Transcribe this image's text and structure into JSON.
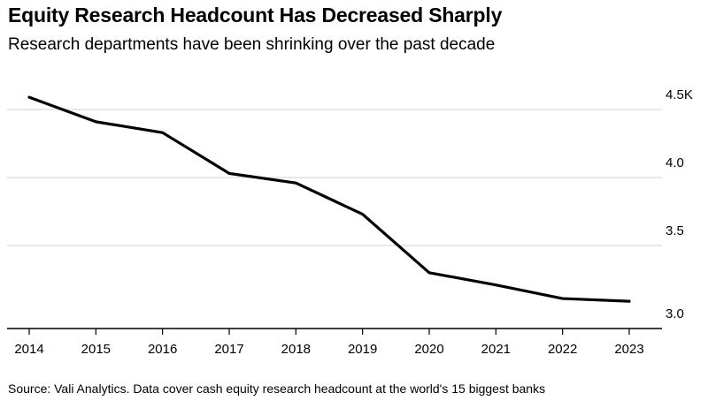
{
  "title": "Equity Research Headcount Has Decreased Sharply",
  "subtitle": "Research departments have been shrinking over the past decade",
  "source": "Source: Vali Analytics. Data cover cash equity research headcount at the world's 15 biggest banks",
  "colors": {
    "line": "#000000",
    "grid": "#d9d9d9",
    "axis": "#000000"
  },
  "chart_data": {
    "type": "line",
    "title": "Equity Research Headcount Has Decreased Sharply",
    "subtitle": "Research departments have been shrinking over the past decade",
    "x": [
      2014,
      2015,
      2016,
      2017,
      2018,
      2019,
      2020,
      2021,
      2022,
      2023
    ],
    "x_tick_labels": [
      "2014",
      "2015",
      "2016",
      "2017",
      "2018",
      "2019",
      "2020",
      "2021",
      "2022",
      "2023"
    ],
    "series": [
      {
        "values": [
          4.59,
          4.41,
          4.33,
          4.03,
          3.96,
          3.73,
          3.3,
          3.21,
          3.11,
          3.09
        ]
      }
    ],
    "y_unit": "K",
    "ylim": [
      2.9,
      4.6
    ],
    "y_ticks": [
      3.0,
      3.5,
      4.0,
      4.5
    ],
    "y_tick_labels": [
      "3.0",
      "3.5",
      "4.0",
      "4.5K"
    ],
    "y_axis_side": "right",
    "grid": true
  }
}
